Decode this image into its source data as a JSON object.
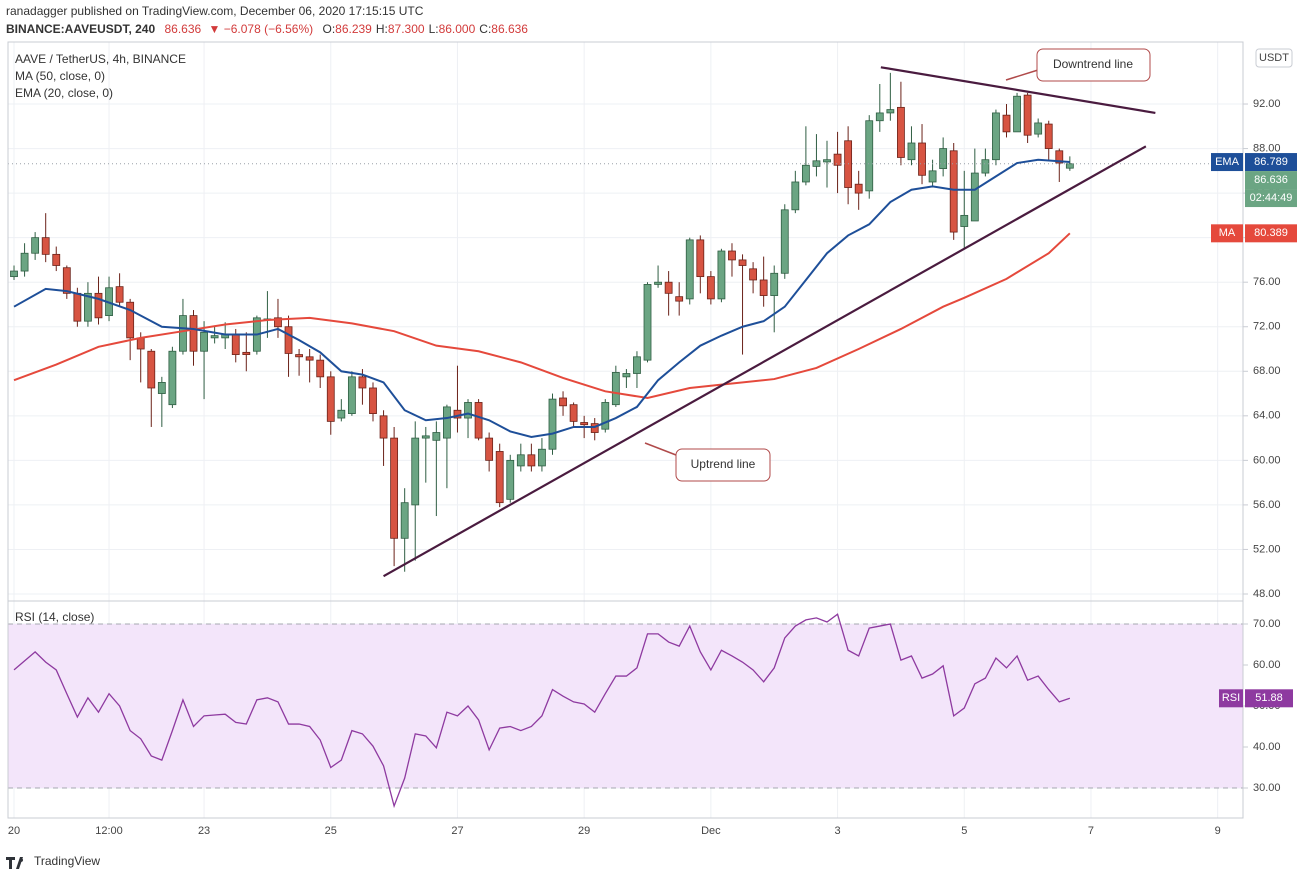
{
  "header": {
    "publisher": "ranadagger published on TradingView.com, December 06, 2020 17:15:15 UTC",
    "symbol": "BINANCE:AAVEUSDT, 240",
    "last": "86.636",
    "change": "▼ −6.078 (−6.56%)",
    "ohlc": [
      {
        "key": "O:",
        "value": "86.239"
      },
      {
        "key": "H:",
        "value": "87.300"
      },
      {
        "key": "L:",
        "value": "86.000"
      },
      {
        "key": "C:",
        "value": "86.636"
      }
    ]
  },
  "footer": {
    "logo": "TradingView"
  },
  "chart_data": [
    {
      "type": "candlestick",
      "title": "AAVE / TetherUS, 4h, BINANCE",
      "unit": "USDT",
      "up_color": "#6ba583",
      "down_color": "#d75442",
      "open": [
        76.5,
        77,
        78.6,
        80,
        78.5,
        77.3,
        75,
        72.5,
        75,
        73,
        75.6,
        74.2,
        71,
        69.8,
        66,
        65,
        69.8,
        73,
        69.8,
        71,
        71,
        71.3,
        69.7,
        69.8,
        72.6,
        72.8,
        72,
        69.5,
        69.3,
        69,
        67.5,
        63.8,
        64.2,
        67.5,
        66.5,
        64,
        62,
        53,
        56,
        62,
        61.8,
        62,
        64.5,
        63.8,
        65.2,
        62,
        60.8,
        56.5,
        59.5,
        60.5,
        59.5,
        61,
        65.6,
        65,
        63.4,
        63.3,
        62.8,
        65,
        67.5,
        67.8,
        69,
        75.8,
        76,
        74.7,
        74.5,
        79.8,
        76.5,
        74.5,
        78.8,
        78,
        77.2,
        76.2,
        74.8,
        76.8,
        82.5,
        85,
        86.4,
        86.8,
        87.5,
        88.7,
        84.8,
        84.2,
        90.5,
        91.2,
        91.7,
        87,
        88.5,
        85,
        86.2,
        87.8,
        81,
        81.5,
        85.8,
        87,
        91,
        89.5,
        92.8,
        89.3,
        90.2,
        87.8,
        86.239
      ],
      "high": [
        77.5,
        79.5,
        80.5,
        82.2,
        79.2,
        77.5,
        75.5,
        76,
        76.5,
        76.5,
        76.8,
        74.5,
        71.5,
        70,
        67.5,
        70.2,
        74.5,
        73.5,
        72.5,
        72,
        72.4,
        71.8,
        71.5,
        73,
        75.2,
        74.5,
        73,
        70,
        70,
        69.5,
        68,
        65.5,
        68,
        68.2,
        67,
        64.5,
        63,
        57.5,
        63.5,
        63,
        63.5,
        65,
        68.5,
        65.5,
        65.5,
        62.5,
        61.5,
        60.5,
        61.5,
        61.5,
        62,
        66,
        66.2,
        65.2,
        64,
        63.8,
        65.5,
        68.5,
        68.2,
        69.8,
        76,
        77.5,
        77,
        76,
        80,
        80.2,
        77,
        79,
        79.5,
        78.5,
        77.8,
        78.3,
        77.5,
        83,
        86,
        90,
        89.3,
        88.7,
        89.5,
        90,
        86,
        91,
        93.8,
        94.8,
        94,
        90,
        90.2,
        87,
        89,
        88.5,
        86,
        88,
        88,
        91.5,
        92,
        93,
        93,
        90.7,
        90.5,
        88,
        87.3
      ],
      "low": [
        76.2,
        76.5,
        78,
        77.8,
        77,
        74.5,
        72,
        72,
        72.2,
        72.5,
        73.8,
        69,
        67,
        63,
        63,
        64.7,
        69.5,
        68.5,
        65.5,
        70.5,
        70,
        68.8,
        68,
        69.5,
        71,
        71,
        67.5,
        67.6,
        67,
        66.5,
        62.3,
        63.5,
        64,
        65,
        63.5,
        59.5,
        50.5,
        50,
        51,
        58,
        55,
        57.5,
        62.5,
        62,
        61.8,
        59,
        55.8,
        56.2,
        59,
        59,
        59,
        60.5,
        64,
        63,
        62,
        61.8,
        62.5,
        64.8,
        66.5,
        66.5,
        68.8,
        75.5,
        73,
        73,
        74,
        75,
        74,
        74.2,
        76.5,
        69.5,
        75,
        73.8,
        71.5,
        76.3,
        82.2,
        84.7,
        85.5,
        84.5,
        84,
        83,
        82.5,
        83.5,
        89.5,
        90.5,
        86.5,
        86.5,
        84.8,
        84.5,
        85.5,
        79.8,
        79,
        81.5,
        85.5,
        86.5,
        89,
        89.5,
        88.5,
        89,
        87,
        85,
        86
      ],
      "close": [
        77,
        78.6,
        80,
        78.5,
        77.5,
        75,
        72.5,
        75,
        72.8,
        75.5,
        74.2,
        71,
        70,
        66.5,
        67,
        69.8,
        73,
        69.8,
        71.5,
        71.2,
        71.3,
        69.5,
        69.5,
        72.8,
        72.7,
        72,
        69.6,
        69.3,
        69,
        67.5,
        63.5,
        64.5,
        67.5,
        66.5,
        64.2,
        62,
        53,
        56.2,
        62,
        62.2,
        62.5,
        64.8,
        63.8,
        65.2,
        62,
        60,
        56.2,
        60,
        60.5,
        59.5,
        61,
        65.5,
        64.9,
        63.5,
        63.2,
        62.5,
        65.2,
        67.9,
        67.8,
        69.3,
        75.8,
        76,
        75,
        74.3,
        79.8,
        76.5,
        74.5,
        78.8,
        78,
        77.5,
        76.2,
        74.8,
        76.8,
        82.5,
        85,
        86.5,
        86.9,
        87,
        86.5,
        84.5,
        84,
        90.5,
        91.2,
        91.5,
        87.2,
        88.5,
        85.6,
        86,
        88,
        80.5,
        82,
        85.8,
        87,
        91.2,
        89.5,
        92.7,
        89.2,
        90.3,
        88,
        86.7,
        86.636
      ],
      "series": [
        {
          "name": "MA (50, close, 0)",
          "tag": "MA",
          "color": "#e5493c",
          "x": [
            0,
            4,
            8,
            12,
            16,
            20,
            24,
            28,
            32,
            36,
            40,
            44,
            48,
            52,
            56,
            60,
            64,
            68,
            72,
            76,
            80,
            84,
            88,
            90,
            94,
            98,
            100
          ],
          "values": [
            67.2,
            68.6,
            70.2,
            71,
            71.6,
            72.2,
            72.6,
            72.8,
            72.3,
            71.6,
            70.3,
            69.8,
            68.8,
            67.4,
            66.2,
            65.6,
            66.5,
            66.9,
            67.3,
            68.3,
            70,
            71.8,
            73.8,
            74.6,
            76.3,
            78.6,
            80.389
          ]
        },
        {
          "name": "EMA (20, close, 0)",
          "tag": "EMA",
          "color": "#1e4f99",
          "x": [
            0,
            3,
            5,
            8,
            11,
            14,
            17,
            20,
            23,
            25,
            27,
            29,
            31,
            33,
            35,
            37,
            39,
            41,
            43,
            45,
            47,
            49,
            51,
            53,
            55,
            57,
            59,
            61,
            63,
            65,
            67,
            69,
            71,
            73,
            75,
            77,
            79,
            81,
            83,
            85,
            87,
            89,
            91,
            93,
            95,
            97,
            100
          ],
          "values": [
            73.8,
            75.4,
            75.2,
            74.5,
            73.5,
            72,
            71.8,
            71.3,
            71.3,
            71.8,
            70.8,
            69.7,
            68,
            67.7,
            67,
            64.5,
            63.6,
            63.8,
            64.2,
            63.6,
            62.6,
            62.1,
            62.4,
            63,
            63,
            63.8,
            64.8,
            67.2,
            68.8,
            70.3,
            71.2,
            72,
            72.5,
            73.8,
            76.2,
            78.6,
            80.2,
            81.2,
            83.2,
            84.3,
            84.6,
            84.3,
            84.3,
            85.5,
            86.7,
            87,
            86.789
          ]
        }
      ],
      "trendlines": [
        {
          "color": "#4a1b3f",
          "x": [
            82.1,
            108.1
          ],
          "values": [
            95.3,
            91.2
          ]
        },
        {
          "color": "#4a1b3f",
          "x": [
            35,
            107.2
          ],
          "values": [
            49.6,
            88.2
          ]
        }
      ],
      "annotations": [
        "Downtrend line",
        "Uptrend line"
      ],
      "countdown": "02:44:49",
      "xlim": [
        -0.57,
        116.4
      ],
      "ylim": [
        47.46,
        97.57
      ],
      "yticks": [
        {
          "value": 48,
          "label": "48.00"
        },
        {
          "value": 52,
          "label": "52.00"
        },
        {
          "value": 56,
          "label": "56.00"
        },
        {
          "value": 60,
          "label": "60.00"
        },
        {
          "value": 64,
          "label": "64.00"
        },
        {
          "value": 68,
          "label": "68.00"
        },
        {
          "value": 72,
          "label": "72.00"
        },
        {
          "value": 76,
          "label": "76.00"
        },
        {
          "value": 80,
          "label": "80.00"
        },
        {
          "value": 84,
          "label": "84.00"
        },
        {
          "value": 88,
          "label": "88.00"
        },
        {
          "value": 92,
          "label": "92.00"
        }
      ],
      "grid": true
    },
    {
      "type": "line",
      "title": "RSI (14, close)",
      "band": [
        30,
        70
      ],
      "band_color": "#f3e5fa",
      "series": [
        {
          "name": "RSI",
          "color": "#8e3aa0",
          "values": [
            58.8,
            61,
            63.2,
            60.7,
            58.8,
            53,
            47.3,
            52,
            48.5,
            53,
            50,
            44,
            42,
            37.8,
            36.8,
            44,
            51.5,
            45,
            47.6,
            47.8,
            48,
            46,
            45.6,
            51.5,
            52,
            51,
            45.6,
            45.6,
            45,
            41.7,
            35,
            36.8,
            44,
            43.2,
            40.2,
            35.4,
            25.6,
            32.4,
            43.2,
            42.7,
            39.8,
            48.5,
            47.6,
            50,
            46.6,
            39.3,
            44.6,
            45,
            44,
            45,
            47.6,
            54,
            52.4,
            51,
            50.5,
            48.5,
            53,
            57.3,
            57.3,
            59.3,
            67.6,
            67.6,
            65.6,
            64.6,
            69.5,
            63.2,
            58.8,
            63.6,
            62.2,
            60.7,
            58.8,
            55.9,
            59.3,
            66.6,
            69.5,
            71,
            71.5,
            70.5,
            72.4,
            63.6,
            62.2,
            69,
            69.5,
            70,
            61.2,
            62.2,
            56.8,
            57.8,
            59.8,
            47.6,
            49.5,
            55.4,
            56.8,
            61.7,
            59.3,
            62.2,
            56.3,
            57.3,
            54,
            51,
            51.88
          ]
        }
      ],
      "xlim": [
        -0.57,
        116.4
      ],
      "ylim": [
        22.68,
        75.37
      ],
      "yticks": [
        {
          "value": 30,
          "label": "30.00"
        },
        {
          "value": 40,
          "label": "40.00"
        },
        {
          "value": 50,
          "label": "50.00"
        },
        {
          "value": 60,
          "label": "60.00"
        },
        {
          "value": 70,
          "label": "70.00"
        }
      ],
      "xticks": [
        {
          "value": 0,
          "label": "20"
        },
        {
          "value": 9,
          "label": "12:00"
        },
        {
          "value": 18,
          "label": "23"
        },
        {
          "value": 30,
          "label": "25"
        },
        {
          "value": 42,
          "label": "27"
        },
        {
          "value": 54,
          "label": "29"
        },
        {
          "value": 66,
          "label": "Dec"
        },
        {
          "value": 78,
          "label": "3"
        },
        {
          "value": 90,
          "label": "5"
        },
        {
          "value": 102,
          "label": "7"
        },
        {
          "value": 114,
          "label": "9"
        }
      ],
      "grid": true
    }
  ]
}
